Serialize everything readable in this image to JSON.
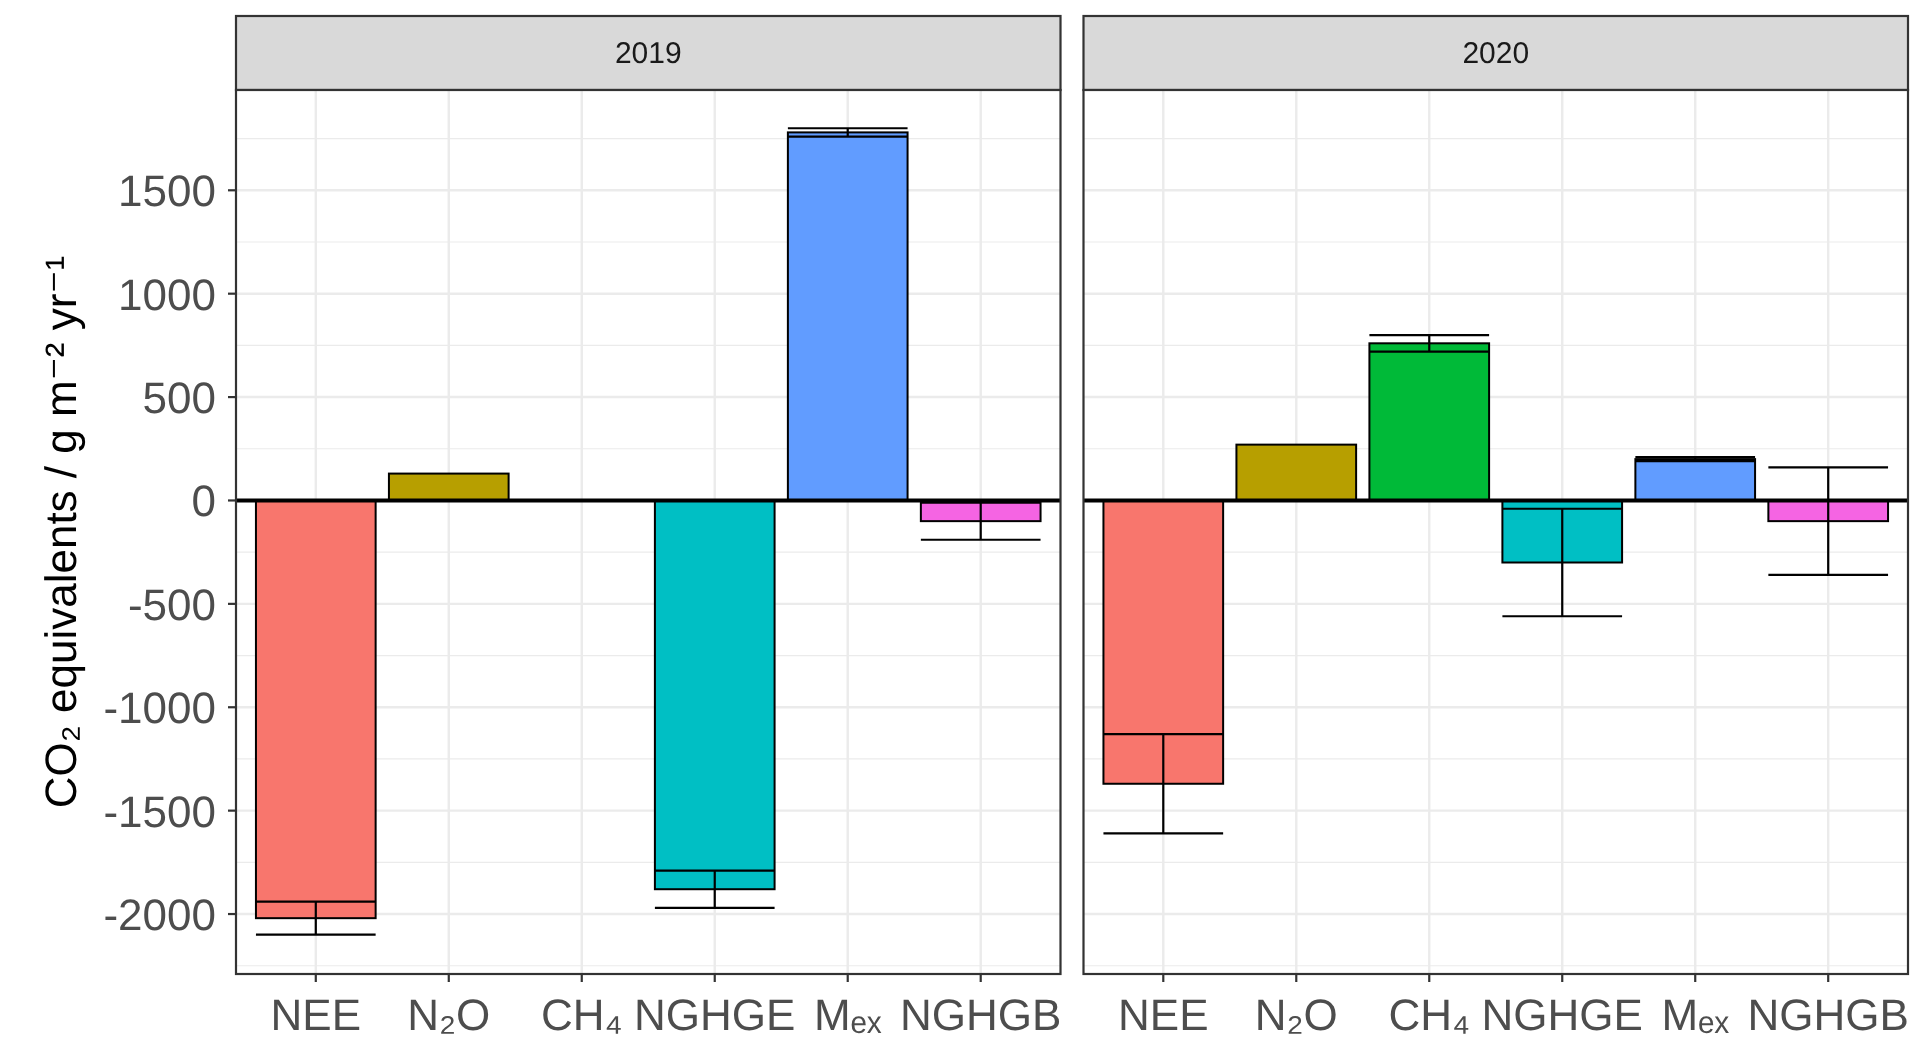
{
  "chart_data": [
    {
      "type": "bar",
      "title": "2019",
      "ylabel": "CO₂ equivalents / g m⁻² yr⁻¹",
      "categories": [
        "NEE",
        "N₂O",
        "CH₄",
        "NGHGE",
        "Mₑₓ",
        "NGHGB"
      ],
      "values": [
        -2020,
        130,
        null,
        -1880,
        1780,
        -100
      ],
      "errors": [
        80,
        null,
        null,
        90,
        20,
        90
      ],
      "colors": [
        "#f8766d",
        "#b79f00",
        null,
        "#00bfc4",
        "#619cff",
        "#f564e3"
      ],
      "ylim": [
        -2290,
        1985
      ],
      "yticks": [
        -2000,
        -1500,
        -1000,
        -500,
        0,
        500,
        1000,
        1500
      ],
      "grid": true,
      "ref_lines": [
        {
          "axis": "y",
          "value": 0,
          "color": "#000000"
        }
      ]
    },
    {
      "type": "bar",
      "title": "2020",
      "categories": [
        "NEE",
        "N₂O",
        "CH₄",
        "NGHGE",
        "Mₑₓ",
        "NGHGB"
      ],
      "values": [
        -1370,
        270,
        760,
        -300,
        200,
        -100
      ],
      "errors": [
        240,
        null,
        40,
        260,
        10,
        260
      ],
      "colors": [
        "#f8766d",
        "#b79f00",
        "#00ba38",
        "#00bfc4",
        "#619cff",
        "#f564e3"
      ],
      "ylim": [
        -2290,
        1985
      ],
      "yticks": [
        -2000,
        -1500,
        -1000,
        -500,
        0,
        500,
        1000,
        1500
      ],
      "grid": true,
      "tick_labels": "x",
      "ref_lines": [
        {
          "axis": "y",
          "value": 0,
          "color": "#000000"
        }
      ]
    }
  ]
}
